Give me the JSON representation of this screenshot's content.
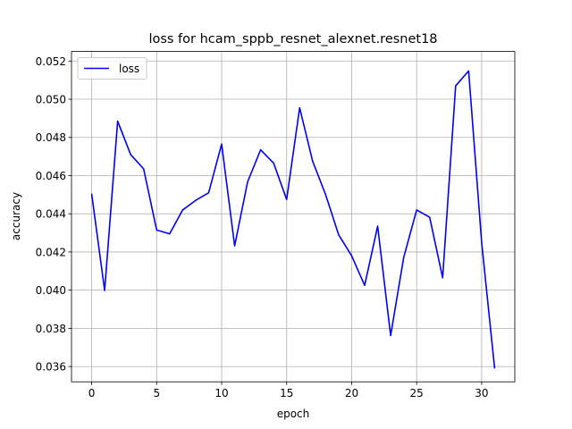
{
  "chart_data": {
    "type": "line",
    "title": "loss for hcam_sppb_resnet_alexnet.resnet18",
    "xlabel": "epoch",
    "ylabel": "accuracy",
    "xlim": [
      -1.55,
      32.55
    ],
    "ylim": [
      0.0352,
      0.0525
    ],
    "xticks": [
      0,
      5,
      10,
      15,
      20,
      25,
      30
    ],
    "yticks": [
      0.036,
      0.038,
      0.04,
      0.042,
      0.044,
      0.046,
      0.048,
      0.05,
      0.052
    ],
    "xtick_labels": [
      "0",
      "5",
      "10",
      "15",
      "20",
      "25",
      "30"
    ],
    "ytick_labels": [
      "0.036",
      "0.038",
      "0.040",
      "0.042",
      "0.044",
      "0.046",
      "0.048",
      "0.050",
      "0.052"
    ],
    "grid": true,
    "legend": "top-left",
    "series": [
      {
        "name": "loss",
        "color": "#0000ff",
        "x": [
          0,
          1,
          2,
          3,
          4,
          5,
          6,
          7,
          8,
          9,
          10,
          11,
          12,
          13,
          14,
          15,
          16,
          17,
          18,
          19,
          20,
          21,
          22,
          23,
          24,
          25,
          26,
          27,
          28,
          29,
          30,
          31
        ],
        "values": [
          0.04505,
          0.03998,
          0.04885,
          0.0471,
          0.04635,
          0.04315,
          0.04295,
          0.0442,
          0.0447,
          0.0451,
          0.04765,
          0.04232,
          0.04568,
          0.04735,
          0.04665,
          0.04475,
          0.04955,
          0.04675,
          0.045,
          0.0429,
          0.0418,
          0.04025,
          0.04335,
          0.03762,
          0.0417,
          0.0442,
          0.04382,
          0.04065,
          0.0507,
          0.05148,
          0.0425,
          0.0359
        ]
      }
    ]
  }
}
